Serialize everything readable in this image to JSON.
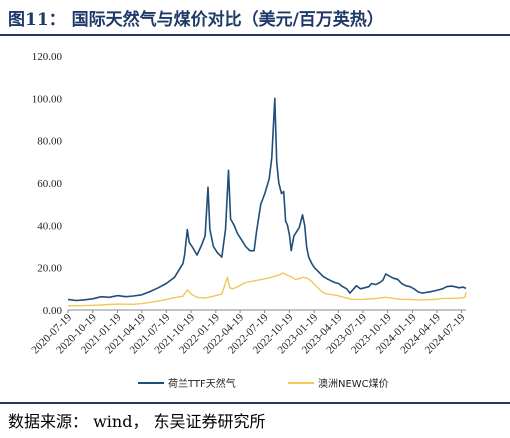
{
  "header": {
    "title": "图11：  国际天然气与煤价对比（美元/百万英热）"
  },
  "footer": {
    "source": "数据来源：  wind，  东吴证券研究所"
  },
  "colors": {
    "ttf": "#1f4e79",
    "newc": "#f2c75c",
    "rule": "#1f3a68"
  },
  "chart_data": {
    "type": "line",
    "ylim": [
      0,
      120
    ],
    "yticks": [
      "0.00",
      "20.00",
      "40.00",
      "60.00",
      "80.00",
      "100.00",
      "120.00"
    ],
    "xticks": [
      "2020-07-19",
      "2020-10-19",
      "2021-01-19",
      "2021-04-19",
      "2021-07-19",
      "2021-10-19",
      "2022-01-19",
      "2022-04-19",
      "2022-07-19",
      "2022-10-19",
      "2023-01-19",
      "2023-04-19",
      "2023-07-19",
      "2023-10-19",
      "2024-01-19",
      "2024-04-19",
      "2024-07-19"
    ],
    "legend_position": "bottom",
    "series": [
      {
        "name": "荷兰TTF天然气",
        "color": "#1f4e79",
        "points": [
          [
            "2020-07-19",
            5.0
          ],
          [
            "2020-08-19",
            4.5
          ],
          [
            "2020-09-19",
            4.8
          ],
          [
            "2020-10-19",
            5.3
          ],
          [
            "2020-11-19",
            6.3
          ],
          [
            "2020-12-19",
            6.0
          ],
          [
            "2021-01-19",
            6.8
          ],
          [
            "2021-02-19",
            6.3
          ],
          [
            "2021-03-19",
            6.6
          ],
          [
            "2021-04-19",
            7.2
          ],
          [
            "2021-05-19",
            8.7
          ],
          [
            "2021-06-19",
            10.5
          ],
          [
            "2021-07-19",
            12.5
          ],
          [
            "2021-08-19",
            15.5
          ],
          [
            "2021-09-19",
            22.0
          ],
          [
            "2021-09-25",
            26.0
          ],
          [
            "2021-10-05",
            38.0
          ],
          [
            "2021-10-12",
            32.0
          ],
          [
            "2021-10-25",
            29.5
          ],
          [
            "2021-11-10",
            26.0
          ],
          [
            "2021-11-25",
            30.0
          ],
          [
            "2021-12-10",
            35.0
          ],
          [
            "2021-12-21",
            58.0
          ],
          [
            "2021-12-28",
            38.0
          ],
          [
            "2022-01-10",
            30.0
          ],
          [
            "2022-01-25",
            27.0
          ],
          [
            "2022-02-10",
            25.0
          ],
          [
            "2022-02-24",
            38.0
          ],
          [
            "2022-03-07",
            66.0
          ],
          [
            "2022-03-15",
            43.0
          ],
          [
            "2022-03-28",
            40.0
          ],
          [
            "2022-04-10",
            36.0
          ],
          [
            "2022-04-25",
            33.0
          ],
          [
            "2022-05-10",
            30.0
          ],
          [
            "2022-05-25",
            28.0
          ],
          [
            "2022-06-10",
            28.0
          ],
          [
            "2022-06-20",
            38.0
          ],
          [
            "2022-07-05",
            50.0
          ],
          [
            "2022-07-20",
            55.0
          ],
          [
            "2022-08-05",
            62.0
          ],
          [
            "2022-08-15",
            72.0
          ],
          [
            "2022-08-26",
            100.0
          ],
          [
            "2022-09-02",
            70.0
          ],
          [
            "2022-09-10",
            60.0
          ],
          [
            "2022-09-20",
            55.0
          ],
          [
            "2022-09-28",
            56.0
          ],
          [
            "2022-10-05",
            42.0
          ],
          [
            "2022-10-12",
            40.0
          ],
          [
            "2022-10-20",
            35.0
          ],
          [
            "2022-10-26",
            28.0
          ],
          [
            "2022-11-05",
            35.0
          ],
          [
            "2022-11-15",
            37.0
          ],
          [
            "2022-11-25",
            39.0
          ],
          [
            "2022-12-07",
            45.0
          ],
          [
            "2022-12-15",
            40.0
          ],
          [
            "2022-12-22",
            30.0
          ],
          [
            "2022-12-30",
            25.0
          ],
          [
            "2023-01-10",
            22.0
          ],
          [
            "2023-01-20",
            20.0
          ],
          [
            "2023-02-05",
            18.0
          ],
          [
            "2023-02-20",
            16.0
          ],
          [
            "2023-03-05",
            15.0
          ],
          [
            "2023-03-20",
            14.0
          ],
          [
            "2023-04-05",
            13.0
          ],
          [
            "2023-04-20",
            12.5
          ],
          [
            "2023-05-05",
            11.0
          ],
          [
            "2023-05-20",
            10.0
          ],
          [
            "2023-06-01",
            8.0
          ],
          [
            "2023-06-15",
            10.0
          ],
          [
            "2023-06-25",
            11.5
          ],
          [
            "2023-07-10",
            10.0
          ],
          [
            "2023-07-25",
            10.5
          ],
          [
            "2023-08-10",
            11.0
          ],
          [
            "2023-08-20",
            12.5
          ],
          [
            "2023-09-05",
            12.0
          ],
          [
            "2023-09-20",
            13.0
          ],
          [
            "2023-10-01",
            14.0
          ],
          [
            "2023-10-12",
            17.0
          ],
          [
            "2023-10-25",
            16.0
          ],
          [
            "2023-11-10",
            15.0
          ],
          [
            "2023-11-25",
            14.5
          ],
          [
            "2023-12-10",
            12.5
          ],
          [
            "2023-12-25",
            11.5
          ],
          [
            "2024-01-10",
            11.0
          ],
          [
            "2024-01-25",
            10.0
          ],
          [
            "2024-02-10",
            8.5
          ],
          [
            "2024-02-25",
            8.0
          ],
          [
            "2024-03-10",
            8.3
          ],
          [
            "2024-03-25",
            8.6
          ],
          [
            "2024-04-10",
            9.0
          ],
          [
            "2024-04-25",
            9.5
          ],
          [
            "2024-05-10",
            10.0
          ],
          [
            "2024-05-25",
            11.0
          ],
          [
            "2024-06-10",
            11.3
          ],
          [
            "2024-06-25",
            11.0
          ],
          [
            "2024-07-10",
            10.5
          ],
          [
            "2024-07-25",
            10.8
          ],
          [
            "2024-08-05",
            10.2
          ]
        ]
      },
      {
        "name": "澳洲NEWC煤价",
        "color": "#f2c75c",
        "points": [
          [
            "2020-07-19",
            2.0
          ],
          [
            "2020-09-19",
            2.1
          ],
          [
            "2020-10-19",
            2.2
          ],
          [
            "2020-12-19",
            2.6
          ],
          [
            "2021-01-19",
            2.8
          ],
          [
            "2021-03-19",
            2.7
          ],
          [
            "2021-04-19",
            3.0
          ],
          [
            "2021-05-19",
            3.6
          ],
          [
            "2021-06-19",
            4.2
          ],
          [
            "2021-07-19",
            5.0
          ],
          [
            "2021-08-19",
            5.8
          ],
          [
            "2021-09-19",
            6.5
          ],
          [
            "2021-10-05",
            9.5
          ],
          [
            "2021-10-20",
            7.5
          ],
          [
            "2021-11-10",
            6.0
          ],
          [
            "2021-12-10",
            5.6
          ],
          [
            "2022-01-10",
            6.5
          ],
          [
            "2022-02-10",
            7.5
          ],
          [
            "2022-03-03",
            15.5
          ],
          [
            "2022-03-12",
            10.5
          ],
          [
            "2022-03-25",
            10.0
          ],
          [
            "2022-04-10",
            11.0
          ],
          [
            "2022-05-10",
            13.0
          ],
          [
            "2022-06-10",
            13.8
          ],
          [
            "2022-07-10",
            14.5
          ],
          [
            "2022-08-10",
            15.3
          ],
          [
            "2022-09-10",
            16.5
          ],
          [
            "2022-09-25",
            17.5
          ],
          [
            "2022-10-10",
            16.5
          ],
          [
            "2022-10-25",
            15.8
          ],
          [
            "2022-11-10",
            14.5
          ],
          [
            "2022-11-25",
            14.8
          ],
          [
            "2022-12-10",
            15.5
          ],
          [
            "2022-12-25",
            15.0
          ],
          [
            "2023-01-10",
            13.5
          ],
          [
            "2023-01-25",
            11.5
          ],
          [
            "2023-02-10",
            9.5
          ],
          [
            "2023-02-25",
            8.0
          ],
          [
            "2023-03-10",
            7.5
          ],
          [
            "2023-04-10",
            7.0
          ],
          [
            "2023-05-10",
            6.0
          ],
          [
            "2023-06-10",
            5.0
          ],
          [
            "2023-07-10",
            5.0
          ],
          [
            "2023-08-10",
            5.2
          ],
          [
            "2023-09-10",
            5.5
          ],
          [
            "2023-10-10",
            6.0
          ],
          [
            "2023-11-10",
            5.5
          ],
          [
            "2023-12-10",
            5.0
          ],
          [
            "2024-01-10",
            5.0
          ],
          [
            "2024-02-10",
            4.8
          ],
          [
            "2024-03-10",
            4.8
          ],
          [
            "2024-04-10",
            5.0
          ],
          [
            "2024-05-10",
            5.5
          ],
          [
            "2024-06-10",
            5.5
          ],
          [
            "2024-07-10",
            5.6
          ],
          [
            "2024-07-25",
            5.8
          ],
          [
            "2024-08-01",
            6.0
          ],
          [
            "2024-08-05",
            8.5
          ]
        ]
      }
    ]
  }
}
